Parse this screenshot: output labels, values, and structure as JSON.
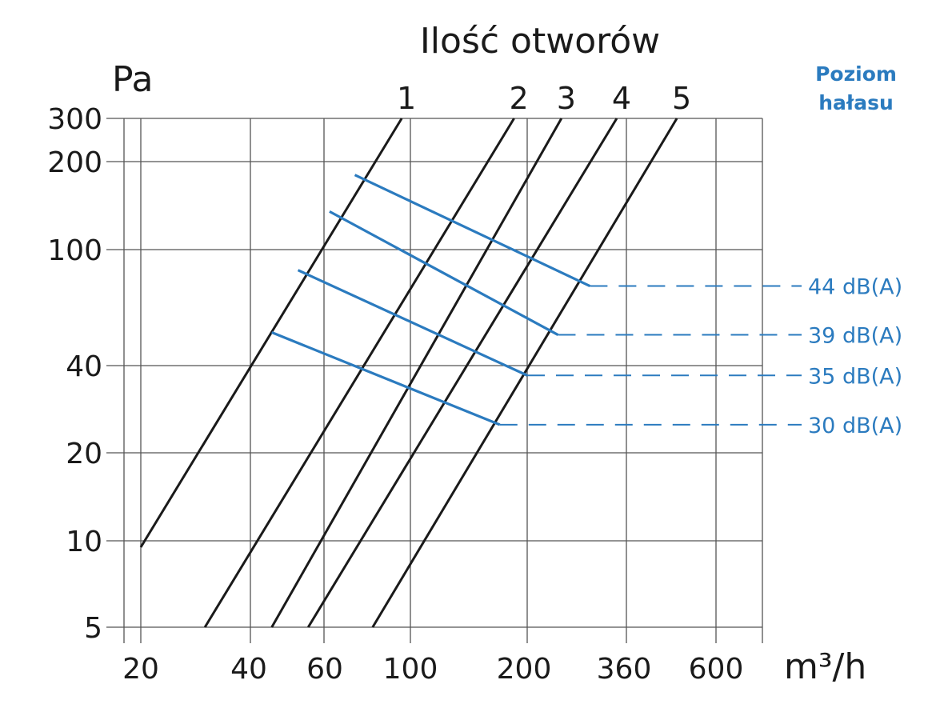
{
  "chart_data": {
    "type": "line",
    "title": "Ilość otworów",
    "ylabel": "Pa",
    "xlabel": "m³/h",
    "noise_title": [
      "Poziom",
      "hałasu"
    ],
    "accent_color": "#2b7bbf",
    "line_color": "#1a1a1a",
    "grid": true,
    "y_ticks": [
      "300",
      "200",
      "100",
      "40",
      "20",
      "10",
      "5"
    ],
    "x_ticks": [
      "20",
      "40",
      "60",
      "100",
      "200",
      "360",
      "600"
    ],
    "series": [
      {
        "name": "1",
        "points": [
          [
            20,
            9.5
          ],
          [
            95,
            300
          ]
        ]
      },
      {
        "name": "2",
        "points": [
          [
            30,
            5
          ],
          [
            185,
            300
          ]
        ]
      },
      {
        "name": "3",
        "points": [
          [
            45,
            5
          ],
          [
            245,
            300
          ]
        ]
      },
      {
        "name": "4",
        "points": [
          [
            55,
            5
          ],
          [
            340,
            300
          ]
        ]
      },
      {
        "name": "5",
        "points": [
          [
            80,
            5
          ],
          [
            480,
            300
          ]
        ]
      }
    ],
    "noise_levels": [
      {
        "name": "44 dB(A)",
        "points": [
          [
            72,
            180
          ],
          [
            290,
            75
          ]
        ]
      },
      {
        "name": "39 dB(A)",
        "points": [
          [
            62,
            135
          ],
          [
            240,
            51
          ]
        ]
      },
      {
        "name": "35 dB(A)",
        "points": [
          [
            52,
            85
          ],
          [
            200,
            37
          ]
        ]
      },
      {
        "name": "30 dB(A)",
        "points": [
          [
            45,
            52
          ],
          [
            170,
            25
          ]
        ]
      }
    ]
  }
}
